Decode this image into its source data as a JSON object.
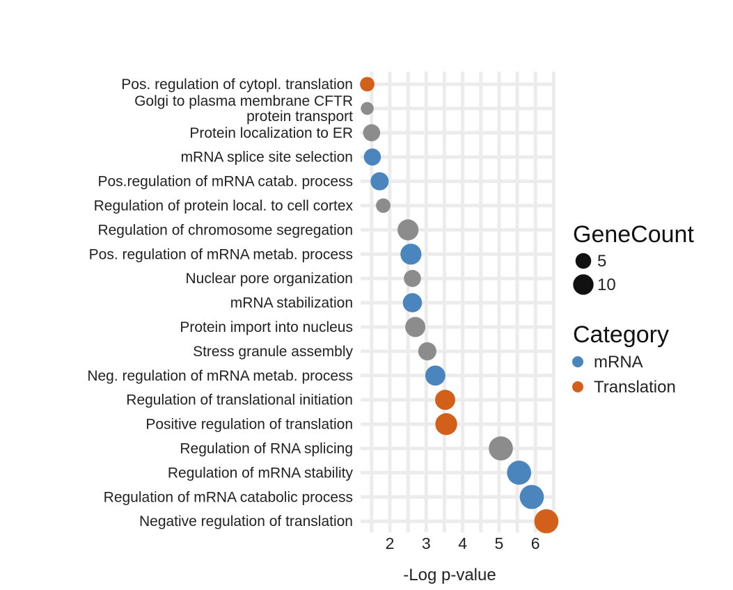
{
  "chart_data": {
    "type": "scatter",
    "xlabel": "-Log p-value",
    "ylabel": "",
    "xlim": [
      1.2,
      6.55
    ],
    "xticks": [
      2,
      3,
      4,
      5,
      6
    ],
    "grid": true,
    "legend_position": "right",
    "categories": [
      "Pos. regulation of cytopl. translation",
      "Golgi to plasma membrane CFTR\nprotein transport",
      "Protein localization to ER",
      "mRNA splice site selection",
      "Pos.regulation of mRNA catab. process",
      "Regulation of protein local. to cell cortex",
      "Regulation of chromosome segregation",
      "Pos. regulation of mRNA metab. process",
      "Nuclear pore organization",
      "mRNA stabilization",
      "Protein import into nucleus",
      "Stress granule assembly",
      "Neg. regulation of mRNA metab. process",
      "Regulation of translational initiation",
      "Positive regulation of translation",
      "Regulation of RNA splicing",
      "Regulation of mRNA stability",
      "Regulation of mRNA catabolic process",
      "Negative regulation of translation"
    ],
    "points": [
      {
        "x": 1.38,
        "group": "Translation",
        "size": 3
      },
      {
        "x": 1.38,
        "group": "Other",
        "size": 2
      },
      {
        "x": 1.5,
        "group": "Other",
        "size": 5
      },
      {
        "x": 1.52,
        "group": "mRNA",
        "size": 5
      },
      {
        "x": 1.72,
        "group": "mRNA",
        "size": 6
      },
      {
        "x": 1.82,
        "group": "Other",
        "size": 3
      },
      {
        "x": 2.5,
        "group": "Other",
        "size": 9
      },
      {
        "x": 2.58,
        "group": "mRNA",
        "size": 9
      },
      {
        "x": 2.62,
        "group": "Other",
        "size": 5
      },
      {
        "x": 2.62,
        "group": "mRNA",
        "size": 7
      },
      {
        "x": 2.7,
        "group": "Other",
        "size": 8
      },
      {
        "x": 3.03,
        "group": "Other",
        "size": 6
      },
      {
        "x": 3.25,
        "group": "mRNA",
        "size": 8
      },
      {
        "x": 3.52,
        "group": "Translation",
        "size": 8
      },
      {
        "x": 3.55,
        "group": "Translation",
        "size": 10
      },
      {
        "x": 5.05,
        "group": "Other",
        "size": 13
      },
      {
        "x": 5.55,
        "group": "mRNA",
        "size": 13
      },
      {
        "x": 5.9,
        "group": "mRNA",
        "size": 13
      },
      {
        "x": 6.3,
        "group": "Translation",
        "size": 13
      }
    ],
    "colors": {
      "mRNA": "#4a86bd",
      "Translation": "#d2601a",
      "Other": "#8c8c8c"
    },
    "legend": {
      "size_title": "GeneCount",
      "size_items": [
        {
          "label": "5",
          "size": 5
        },
        {
          "label": "10",
          "size": 10
        }
      ],
      "color_title": "Category",
      "color_items": [
        {
          "label": "mRNA",
          "group": "mRNA"
        },
        {
          "label": "Translation",
          "group": "Translation"
        }
      ]
    }
  }
}
